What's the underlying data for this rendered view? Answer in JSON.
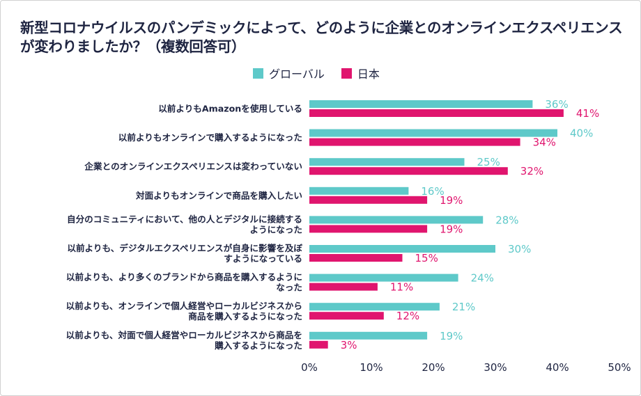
{
  "chart_data": {
    "type": "bar",
    "orientation": "horizontal",
    "title": "新型コロナウイルスのパンデミックによって、どのように企業とのオンラインエクスペリエンスが変わりましたか？（複数回答可）",
    "categories": [
      [
        "以前よりもAmazonを使用している"
      ],
      [
        "以前よりもオンラインで購入するようになった"
      ],
      [
        "企業とのオンラインエクスペリエンスは変わっていない"
      ],
      [
        "対面よりもオンラインで商品を購入したい"
      ],
      [
        "自分のコミュニティにおいて、他の人とデジタルに接続する",
        "ようになった"
      ],
      [
        "以前よりも、デジタルエクスペリエンスが自身に影響を及ぼ",
        "すようになっている"
      ],
      [
        "以前よりも、より多くのブランドから商品を購入するように",
        "なった"
      ],
      [
        "以前よりも、オンラインで個人経営やローカルビジネスから",
        "商品を購入するようになった"
      ],
      [
        "以前よりも、対面で個人経営やローカルビジネスから商品を",
        "購入するようになった"
      ]
    ],
    "series": [
      {
        "name": "グローバル",
        "color": "#5ec9c9",
        "values": [
          36,
          40,
          25,
          16,
          28,
          30,
          24,
          21,
          19
        ],
        "labels": [
          "36%",
          "40%",
          "25%",
          "16%",
          "28%",
          "30%",
          "24%",
          "21%",
          "19%"
        ]
      },
      {
        "name": "日本",
        "color": "#e0156e",
        "values": [
          41,
          34,
          32,
          19,
          19,
          15,
          11,
          12,
          3
        ],
        "labels": [
          "41%",
          "34%",
          "32%",
          "19%",
          "19%",
          "15%",
          "11%",
          "12%",
          "3%"
        ]
      }
    ],
    "xlim": [
      0,
      50
    ],
    "xticks": [
      0,
      10,
      20,
      30,
      40,
      50
    ],
    "xtick_labels": [
      "0%",
      "10%",
      "20%",
      "30%",
      "40%",
      "50%"
    ],
    "grid": false,
    "legend_position": "top"
  }
}
